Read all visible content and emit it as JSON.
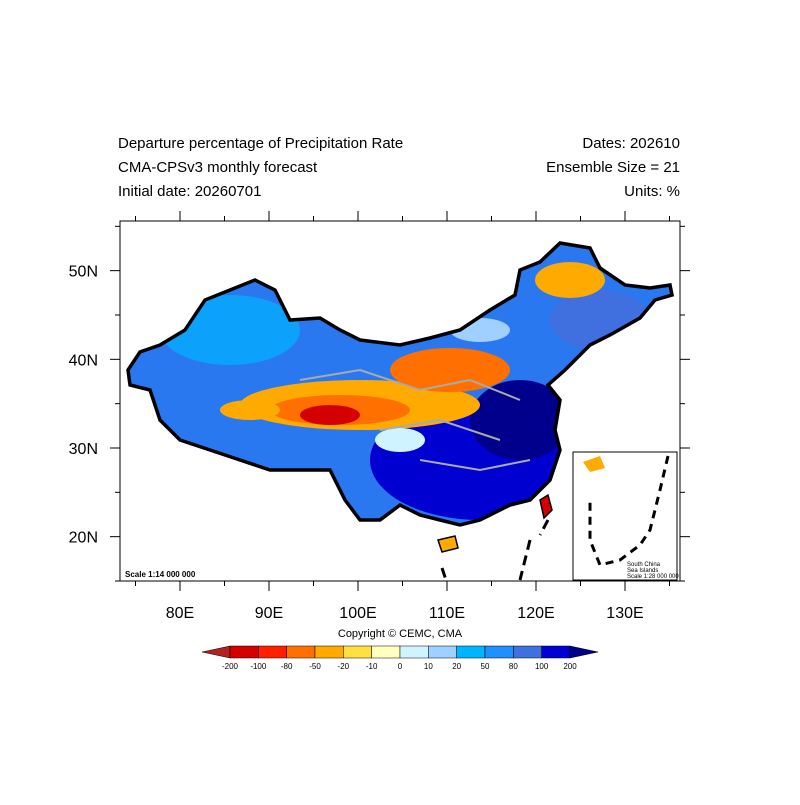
{
  "header": {
    "title": "Departure percentage of Precipitation Rate",
    "subtitle": "CMA-CPSv3 monthly forecast",
    "initial_date": "Initial date: 20260701",
    "dates": "Dates: 202610",
    "ensemble": "Ensemble Size = 21",
    "units": "Units: %"
  },
  "map": {
    "xlim": [
      73.26,
      136.18
    ],
    "ylim": [
      15.0,
      55.6
    ],
    "xticks": [
      {
        "value": 80,
        "label": "80E"
      },
      {
        "value": 90,
        "label": "90E"
      },
      {
        "value": 100,
        "label": "100E"
      },
      {
        "value": 110,
        "label": "110E"
      },
      {
        "value": 120,
        "label": "120E"
      },
      {
        "value": 130,
        "label": "130E"
      }
    ],
    "yticks": [
      {
        "value": 20,
        "label": "20N"
      },
      {
        "value": 30,
        "label": "30N"
      },
      {
        "value": 40,
        "label": "40N"
      },
      {
        "value": 50,
        "label": "50N"
      }
    ],
    "x_minor_ticks": [
      75,
      85,
      95,
      105,
      115,
      125,
      135
    ],
    "y_minor_ticks": [
      15,
      25,
      35,
      45,
      55
    ],
    "scale": "Scale 1:14 000 000"
  },
  "inset": {
    "lines": [
      "South China",
      "Sea Islands",
      "Scale 1:28 000 000"
    ]
  },
  "colorbar": {
    "levels": [
      -200,
      -100,
      -80,
      -50,
      -20,
      -10,
      0,
      10,
      20,
      50,
      80,
      100,
      200
    ],
    "colors": [
      "#b22222",
      "#d40000",
      "#ff2000",
      "#ff7000",
      "#ffaa00",
      "#ffe040",
      "#ffffc0",
      "#d0f4ff",
      "#a0d0ff",
      "#00b4ff",
      "#2090ff",
      "#4070e0",
      "#0000d0",
      "#00008c"
    ]
  },
  "copyright": "Copyright © CEMC, CMA"
}
